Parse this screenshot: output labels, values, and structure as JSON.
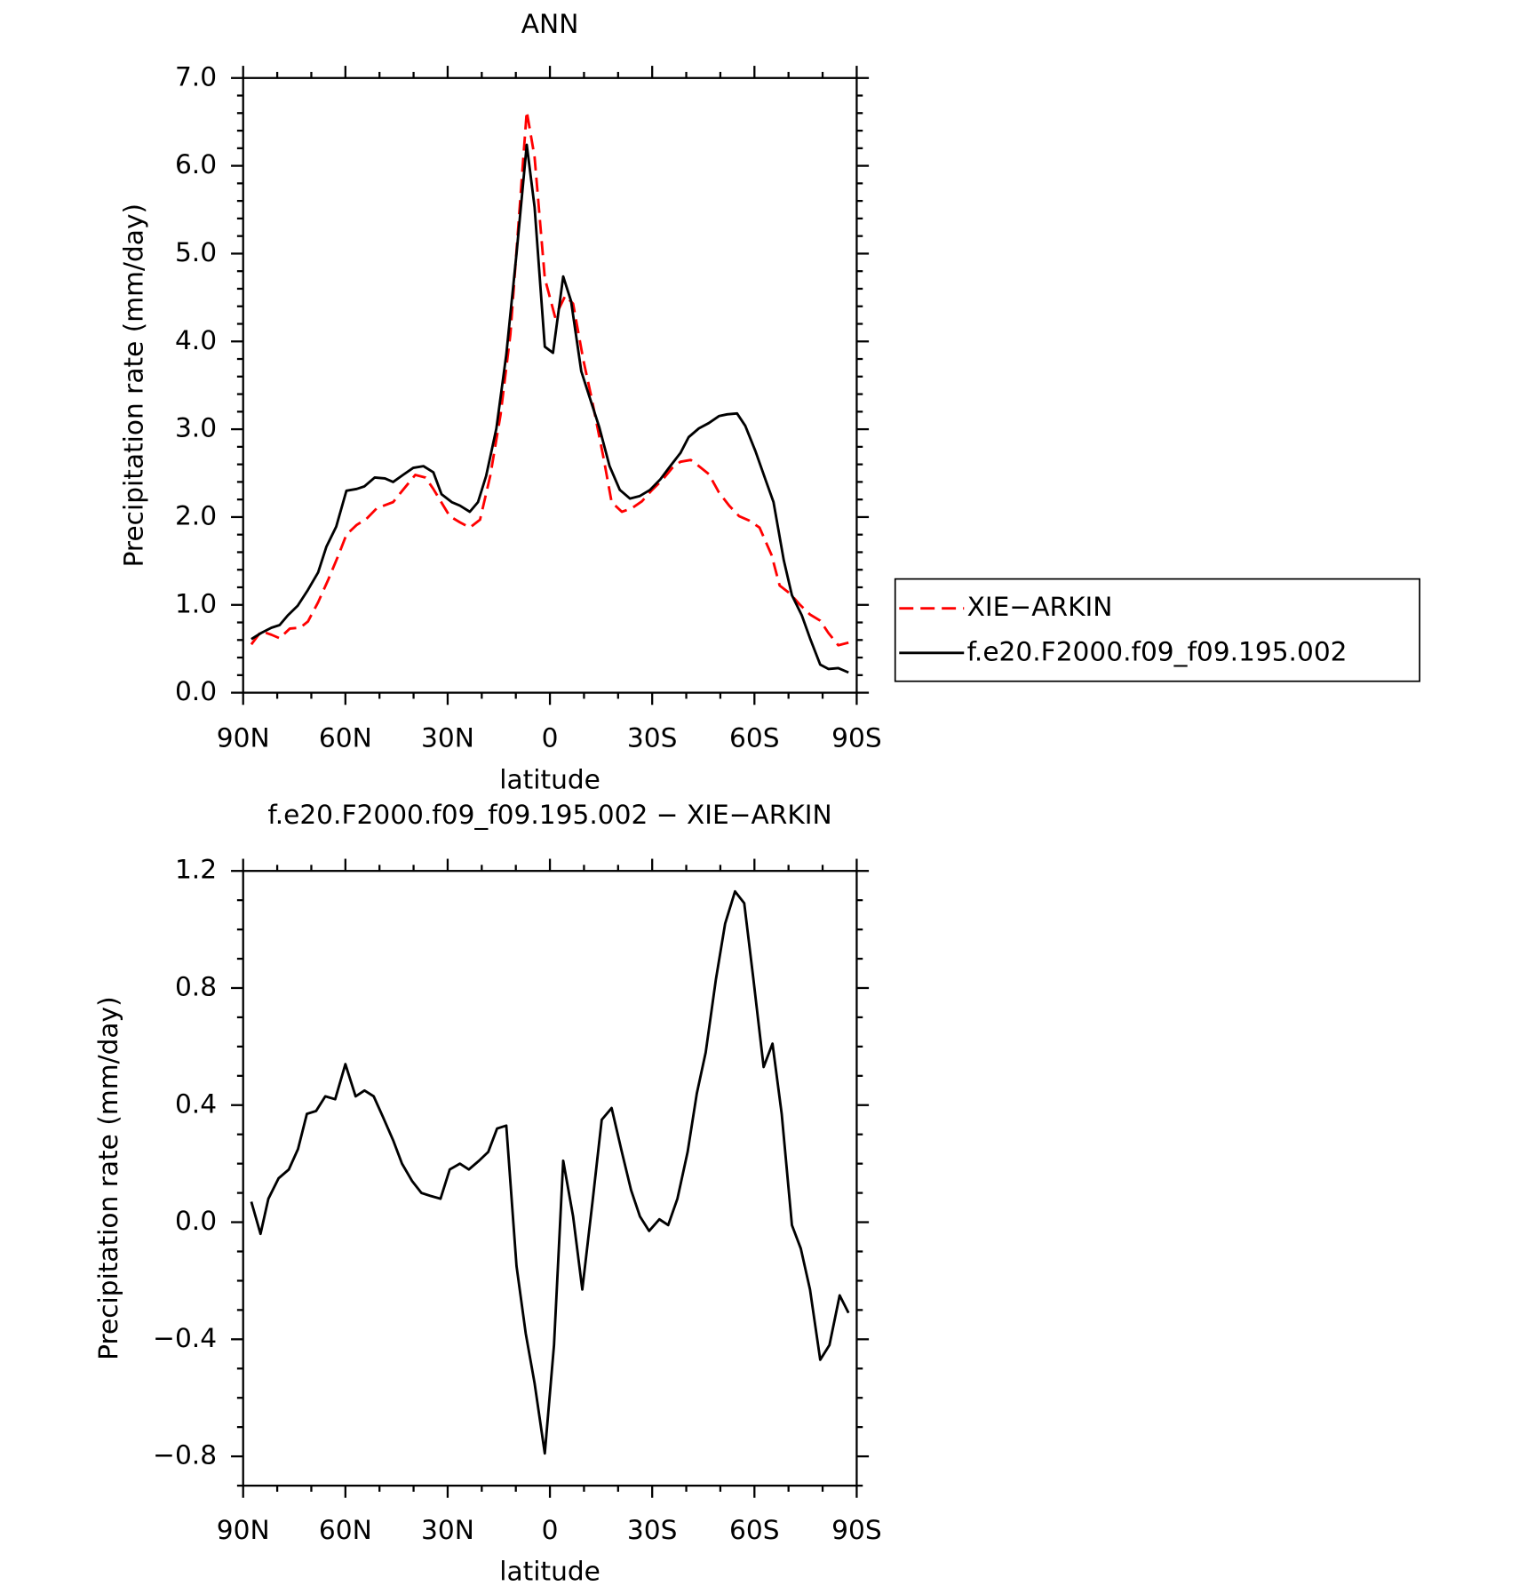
{
  "chart_data": [
    {
      "type": "line",
      "title": "ANN",
      "xlabel": "latitude",
      "ylabel": "Precipitation rate (mm/day)",
      "xlim": [
        90,
        -90
      ],
      "xticks": [
        {
          "value": 90,
          "label": "90N"
        },
        {
          "value": 60,
          "label": "60N"
        },
        {
          "value": 30,
          "label": "30N"
        },
        0,
        {
          "value": -30,
          "label": "30S"
        },
        {
          "value": -60,
          "label": "60S"
        },
        {
          "value": -90,
          "label": "90S"
        }
      ],
      "xminorticks": [
        80,
        70,
        50,
        40,
        20,
        10,
        -10,
        -20,
        -40,
        -50,
        -70,
        -80
      ],
      "ylim": [
        0,
        7
      ],
      "yticks": [
        {
          "value": 0,
          "label": "0.0"
        },
        {
          "value": 1,
          "label": "1.0"
        },
        {
          "value": 2,
          "label": "2.0"
        },
        {
          "value": 3,
          "label": "3.0"
        },
        {
          "value": 4,
          "label": "4.0"
        },
        {
          "value": 5,
          "label": "5.0"
        },
        {
          "value": 6,
          "label": "6.0"
        },
        {
          "value": 7,
          "label": "7.0"
        }
      ],
      "yminorticks": [
        0.2,
        0.4,
        0.6,
        0.8,
        1.2,
        1.4,
        1.6,
        1.8,
        2.2,
        2.4,
        2.6,
        2.8,
        3.2,
        3.4,
        3.6,
        3.8,
        4.2,
        4.4,
        4.6,
        4.8,
        5.2,
        5.4,
        5.6,
        5.8,
        6.2,
        6.4,
        6.6,
        6.8
      ],
      "legend": "right",
      "series": [
        {
          "name": "XIE−ARKIN",
          "color": "#ff0000",
          "style": "dashed",
          "x": [
            87.6,
            84.7,
            81.7,
            79.3,
            76.3,
            73.3,
            71.0,
            68.0,
            65.0,
            62.0,
            59.7,
            56.7,
            53.8,
            50.8,
            46.0,
            43.1,
            39.5,
            36.5,
            34.2,
            29.4,
            26.4,
            23.5,
            20.5,
            17.5,
            14.5,
            11.6,
            9.2,
            6.8,
            4.5,
            1.5,
            -1.5,
            -4.5,
            -6.8,
            -9.8,
            -12.2,
            -15.7,
            -18.1,
            -21.1,
            -24.0,
            -27.0,
            -30.0,
            -32.9,
            -35.9,
            -38.3,
            -41.3,
            -43.7,
            -46.6,
            -49.6,
            -52.6,
            -55.5,
            -58.5,
            -61.5,
            -65.0,
            -67.4,
            -70.4,
            -73.4,
            -76.3,
            -79.3,
            -81.7,
            -84.6,
            -87.6
          ],
          "values": [
            0.55,
            0.7,
            0.66,
            0.62,
            0.73,
            0.74,
            0.81,
            1.03,
            1.29,
            1.57,
            1.8,
            1.91,
            1.98,
            2.1,
            2.17,
            2.31,
            2.48,
            2.45,
            2.32,
            2.01,
            1.94,
            1.88,
            1.97,
            2.47,
            3.16,
            4.08,
            5.35,
            6.62,
            6.1,
            4.72,
            4.28,
            4.52,
            4.43,
            3.79,
            3.36,
            2.68,
            2.17,
            2.06,
            2.1,
            2.18,
            2.31,
            2.42,
            2.56,
            2.63,
            2.65,
            2.58,
            2.49,
            2.28,
            2.13,
            2.01,
            1.96,
            1.88,
            1.57,
            1.22,
            1.13,
            1.0,
            0.89,
            0.82,
            0.68,
            0.54,
            0.57
          ]
        },
        {
          "name": "f.e20.F2000.f09_f09.195.002",
          "color": "#000000",
          "style": "solid",
          "x": [
            87.6,
            84.7,
            81.7,
            79.3,
            76.9,
            74.0,
            71.0,
            68.0,
            65.6,
            62.7,
            59.7,
            56.7,
            54.4,
            51.4,
            48.4,
            46.0,
            43.1,
            40.1,
            37.1,
            34.2,
            31.8,
            28.8,
            26.4,
            23.5,
            21.1,
            18.7,
            15.7,
            12.8,
            9.8,
            6.8,
            4.5,
            1.5,
            -0.9,
            -3.9,
            -6.2,
            -9.2,
            -11.6,
            -14.5,
            -17.5,
            -20.5,
            -23.5,
            -26.4,
            -29.4,
            -32.4,
            -35.3,
            -38.3,
            -40.7,
            -43.7,
            -46.6,
            -49.6,
            -52.0,
            -54.9,
            -57.3,
            -60.3,
            -63.3,
            -65.6,
            -68.6,
            -71.0,
            -73.9,
            -76.3,
            -79.3,
            -81.7,
            -84.6,
            -87.6
          ],
          "values": [
            0.61,
            0.68,
            0.74,
            0.77,
            0.88,
            0.99,
            1.17,
            1.37,
            1.66,
            1.89,
            2.3,
            2.32,
            2.35,
            2.45,
            2.44,
            2.4,
            2.48,
            2.56,
            2.58,
            2.51,
            2.26,
            2.17,
            2.13,
            2.06,
            2.17,
            2.47,
            3.01,
            3.85,
            5.0,
            6.24,
            5.53,
            3.94,
            3.87,
            4.74,
            4.46,
            3.66,
            3.37,
            3.02,
            2.58,
            2.31,
            2.21,
            2.24,
            2.31,
            2.43,
            2.58,
            2.73,
            2.91,
            3.01,
            3.07,
            3.15,
            3.17,
            3.18,
            3.04,
            2.75,
            2.42,
            2.17,
            1.51,
            1.11,
            0.88,
            0.62,
            0.32,
            0.27,
            0.28,
            0.23
          ]
        }
      ]
    },
    {
      "type": "line",
      "title": "f.e20.F2000.f09_f09.195.002 − XIE−ARKIN",
      "xlabel": "latitude",
      "ylabel": "Precipitation rate (mm/day)",
      "xlim": [
        90,
        -90
      ],
      "xticks": [
        {
          "value": 90,
          "label": "90N"
        },
        {
          "value": 60,
          "label": "60N"
        },
        {
          "value": 30,
          "label": "30N"
        },
        0,
        {
          "value": -30,
          "label": "30S"
        },
        {
          "value": -60,
          "label": "60S"
        },
        {
          "value": -90,
          "label": "90S"
        }
      ],
      "xminorticks": [
        80,
        70,
        50,
        40,
        20,
        10,
        -10,
        -20,
        -40,
        -50,
        -70,
        -80
      ],
      "ylim": [
        -0.9,
        1.2
      ],
      "yticks": [
        {
          "value": -0.8,
          "label": "−0.8"
        },
        {
          "value": -0.4,
          "label": "−0.4"
        },
        {
          "value": 0,
          "label": "0.0"
        },
        0.4,
        0.8,
        1.2
      ],
      "yminorticks": [
        -0.9,
        -0.7,
        -0.6,
        -0.5,
        -0.3,
        -0.2,
        -0.1,
        0.1,
        0.2,
        0.3,
        0.5,
        0.6,
        0.7,
        0.9,
        1.0,
        1.1
      ],
      "series": [
        {
          "color": "#000000",
          "style": "solid",
          "x": [
            87.6,
            84.9,
            82.6,
            79.6,
            76.6,
            73.9,
            71.3,
            68.6,
            65.9,
            63.0,
            60.0,
            57.0,
            54.4,
            51.7,
            49.0,
            46.0,
            43.4,
            40.4,
            37.7,
            35.1,
            32.1,
            29.4,
            26.4,
            23.8,
            20.8,
            18.1,
            15.5,
            12.8,
            9.8,
            7.1,
            4.5,
            1.5,
            -1.2,
            -3.9,
            -6.8,
            -9.5,
            -12.5,
            -15.2,
            -18.1,
            -21.1,
            -23.8,
            -26.4,
            -29.1,
            -32.1,
            -34.7,
            -37.4,
            -40.4,
            -43.1,
            -45.7,
            -48.7,
            -51.4,
            -54.3,
            -57.0,
            -59.7,
            -62.7,
            -65.3,
            -68.0,
            -71.0,
            -73.6,
            -76.3,
            -79.3,
            -82.0,
            -85.0,
            -87.6
          ],
          "values": [
            0.07,
            -0.04,
            0.08,
            0.15,
            0.18,
            0.25,
            0.37,
            0.38,
            0.43,
            0.42,
            0.54,
            0.43,
            0.45,
            0.43,
            0.36,
            0.28,
            0.2,
            0.14,
            0.1,
            0.09,
            0.08,
            0.18,
            0.2,
            0.18,
            0.21,
            0.24,
            0.32,
            0.33,
            -0.15,
            -0.38,
            -0.55,
            -0.79,
            -0.42,
            0.21,
            0.02,
            -0.23,
            0.07,
            0.35,
            0.39,
            0.24,
            0.11,
            0.02,
            -0.03,
            0.01,
            -0.01,
            0.08,
            0.24,
            0.44,
            0.58,
            0.83,
            1.02,
            1.13,
            1.09,
            0.83,
            0.53,
            0.61,
            0.37,
            -0.01,
            -0.09,
            -0.23,
            -0.47,
            -0.42,
            -0.25,
            -0.31
          ]
        }
      ]
    }
  ]
}
